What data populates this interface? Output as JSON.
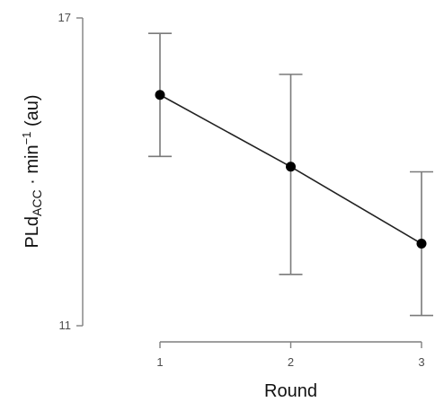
{
  "chart_data": {
    "type": "line",
    "x": [
      1,
      2,
      3
    ],
    "series": [
      {
        "values": [
          15.5,
          14.1,
          12.6
        ],
        "error_low": [
          14.3,
          12.0,
          11.2
        ],
        "error_high": [
          16.7,
          15.9,
          14.0
        ]
      }
    ],
    "xlabel": "Round",
    "ylabel_main": "PLd",
    "ylabel_sub": "ACC",
    "ylabel_rest": " · min",
    "ylabel_sup": "−1",
    "ylabel_unit": " (au)",
    "xticks": [
      "1",
      "2",
      "3"
    ],
    "yticks": [
      "11",
      "17"
    ],
    "xlim": [
      1,
      3
    ],
    "ylim": [
      11,
      17
    ],
    "grid": false,
    "colors": {
      "line": "#222222",
      "point": "#000000",
      "errorbar": "#7a7a7a",
      "axis": "#7f7f7f"
    }
  }
}
